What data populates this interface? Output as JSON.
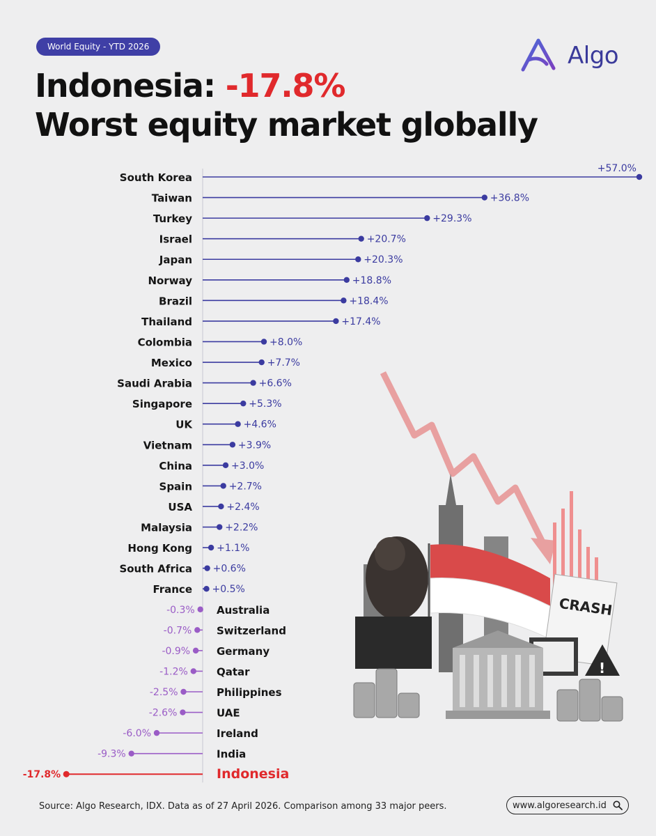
{
  "badge": "World Equity  -  YTD 2026",
  "brand": {
    "name": "Algo",
    "accent": "#3f3fa6"
  },
  "title": {
    "country": "Indonesia:",
    "value": "-17.8%",
    "subtitle": "Worst equity market globally"
  },
  "chart_data": {
    "type": "bar",
    "orientation": "horizontal",
    "style": "lollipop",
    "categories": [
      "South Korea",
      "Taiwan",
      "Turkey",
      "Israel",
      "Japan",
      "Norway",
      "Brazil",
      "Thailand",
      "Colombia",
      "Mexico",
      "Saudi Arabia",
      "Singapore",
      "UK",
      "Vietnam",
      "China",
      "Spain",
      "USA",
      "Malaysia",
      "Hong Kong",
      "South Africa",
      "France",
      "Australia",
      "Switzerland",
      "Germany",
      "Qatar",
      "Philippines",
      "UAE",
      "Ireland",
      "India",
      "Indonesia"
    ],
    "values": [
      57.0,
      36.8,
      29.3,
      20.7,
      20.3,
      18.8,
      18.4,
      17.4,
      8.0,
      7.7,
      6.6,
      5.3,
      4.6,
      3.9,
      3.0,
      2.7,
      2.4,
      2.2,
      1.1,
      0.6,
      0.5,
      -0.3,
      -0.7,
      -0.9,
      -1.2,
      -2.5,
      -2.6,
      -6.0,
      -9.3,
      -17.8
    ],
    "labels": [
      "+57.0%",
      "+36.8%",
      "+29.3%",
      "+20.7%",
      "+20.3%",
      "+18.8%",
      "+18.4%",
      "+17.4%",
      "+8.0%",
      "+7.7%",
      "+6.6%",
      "+5.3%",
      "+4.6%",
      "+3.9%",
      "+3.0%",
      "+2.7%",
      "+2.4%",
      "+2.2%",
      "+1.1%",
      "+0.6%",
      "+0.5%",
      "-0.3%",
      "-0.7%",
      "-0.9%",
      "-1.2%",
      "-2.5%",
      "-2.6%",
      "-6.0%",
      "-9.3%",
      "-17.8%"
    ],
    "highlight": "Indonesia",
    "colors": {
      "positive": "#3b3ba0",
      "negative": "#9a5cc6",
      "highlight": "#e0292c"
    },
    "xlim": [
      -17.8,
      57.0
    ]
  },
  "illustration": {
    "crash_label": "CRASH"
  },
  "footer": {
    "source": "Source: Algo Research, IDX. Data as of 27 April 2026. Comparison among 33 major peers.",
    "url": "www.algoresearch.id"
  }
}
